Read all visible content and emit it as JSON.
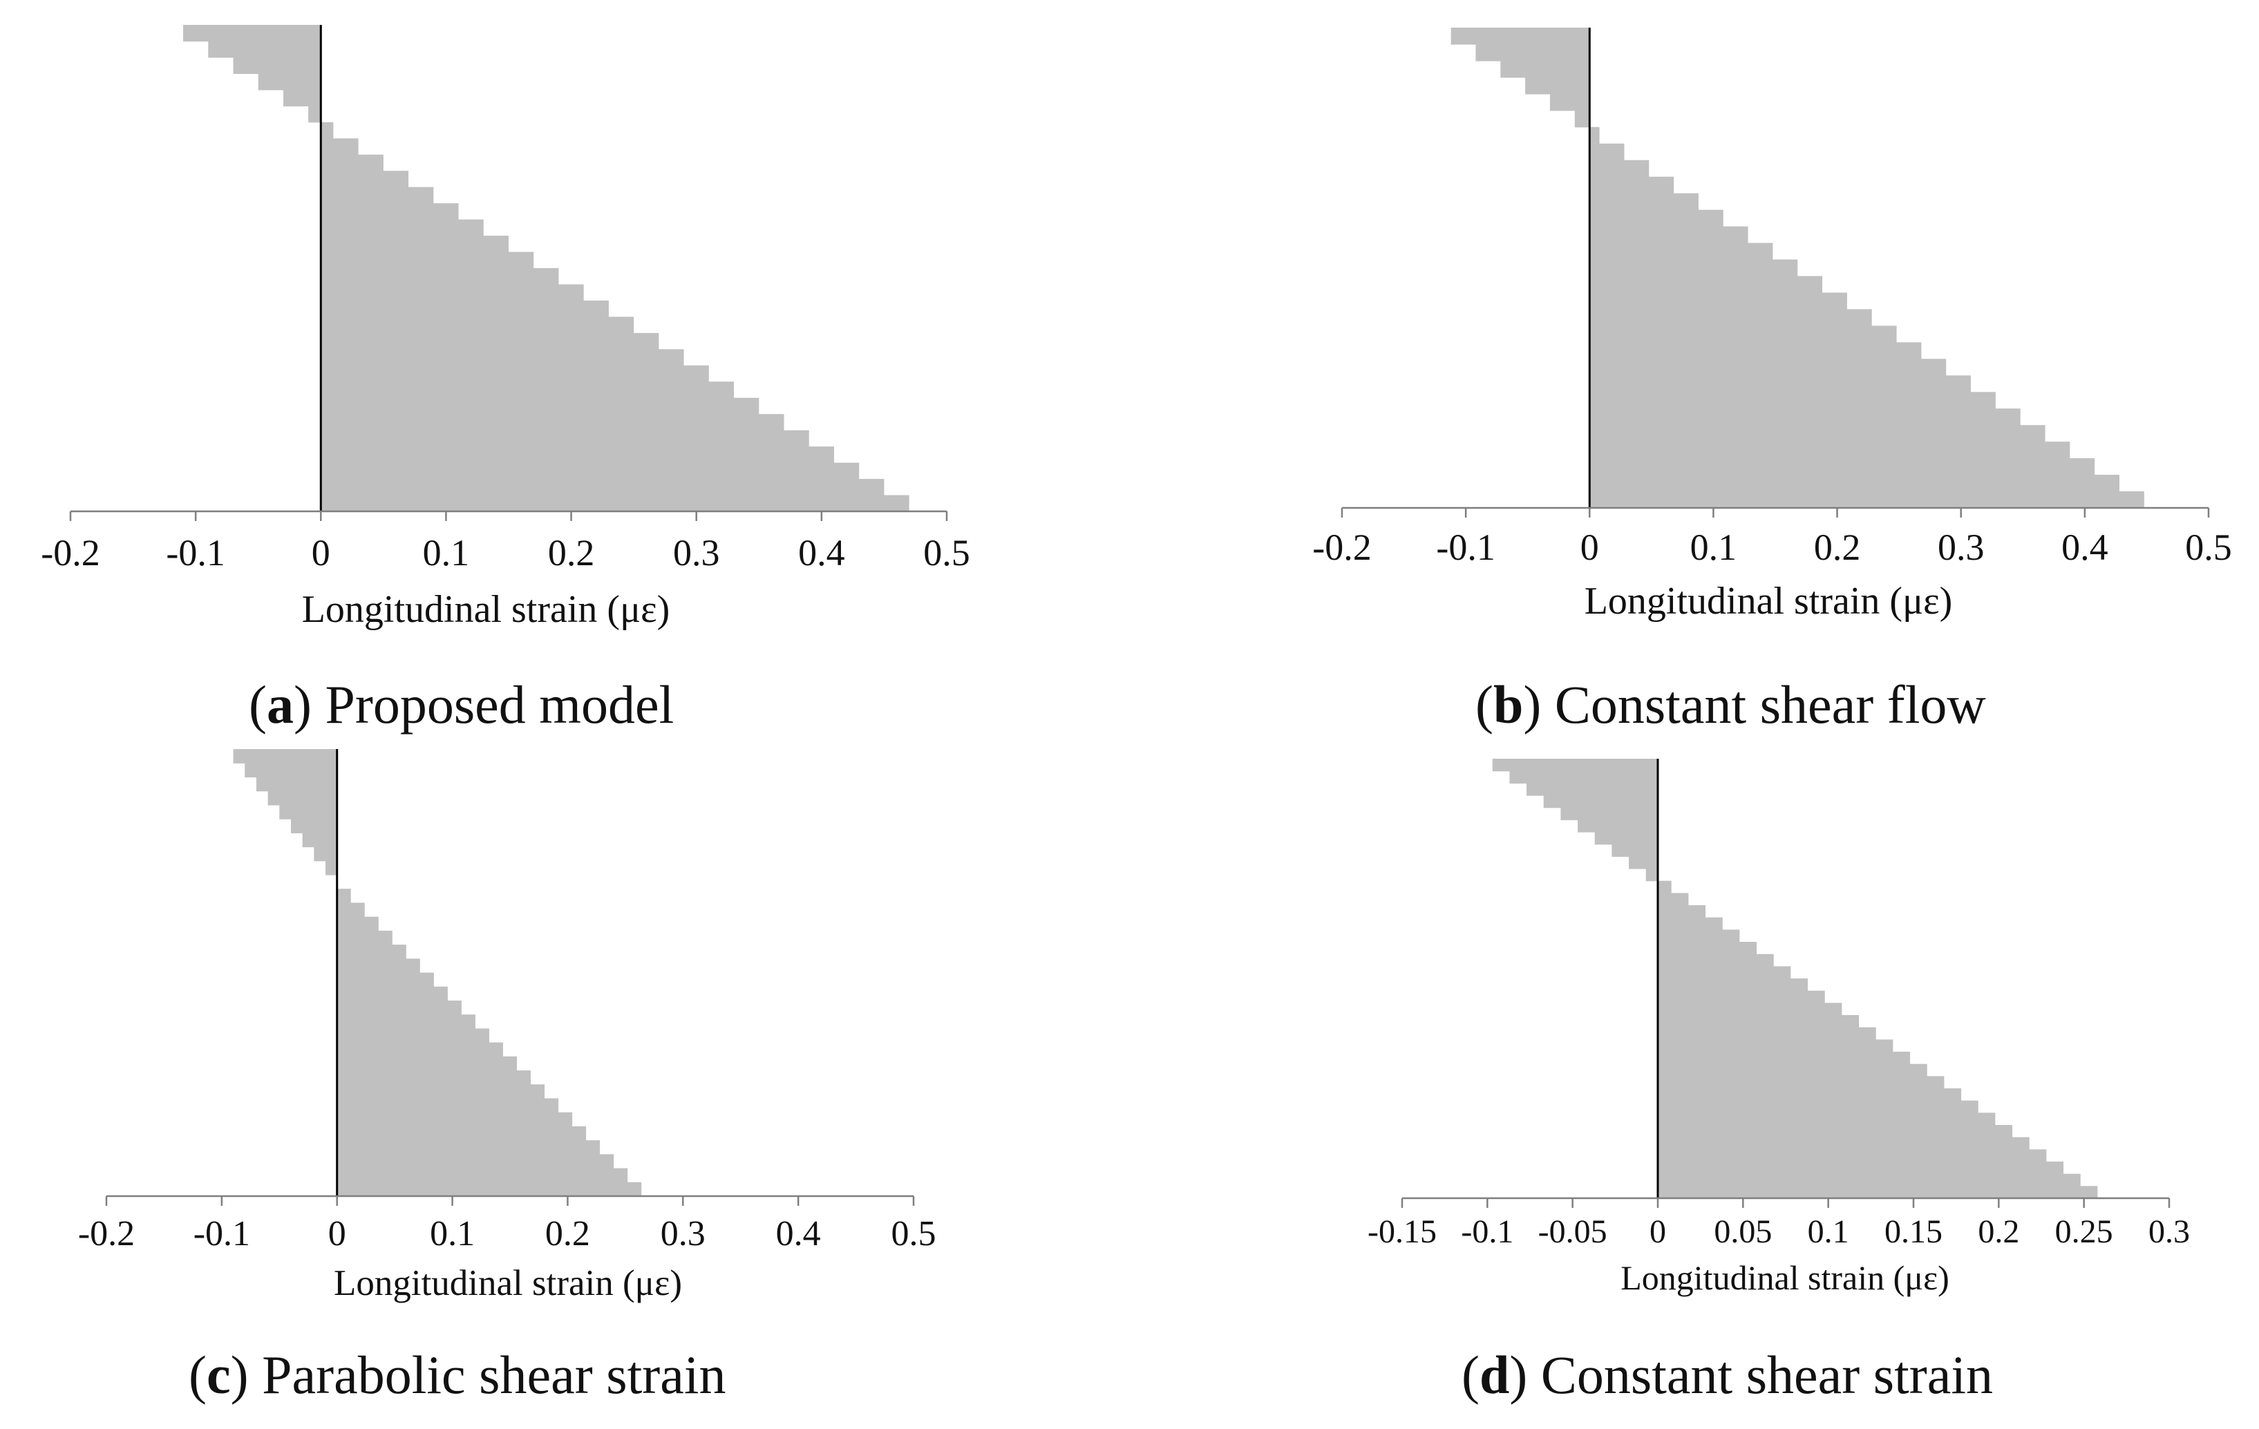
{
  "chart_data": [
    {
      "id": "a",
      "type": "bar",
      "orientation": "horizontal",
      "caption_letter": "a",
      "caption_text": "Proposed model",
      "xlabel": "Longitudinal strain (με)",
      "xlim": [
        -0.2,
        0.5
      ],
      "xticks": [
        "-0.2",
        "-0.1",
        "0",
        "0.1",
        "0.2",
        "0.3",
        "0.4",
        "0.5"
      ],
      "values": [
        -0.11,
        -0.09,
        -0.07,
        -0.05,
        -0.03,
        -0.01,
        0.01,
        0.03,
        0.05,
        0.07,
        0.09,
        0.11,
        0.13,
        0.15,
        0.17,
        0.19,
        0.21,
        0.23,
        0.25,
        0.27,
        0.29,
        0.31,
        0.33,
        0.35,
        0.37,
        0.39,
        0.41,
        0.43,
        0.45,
        0.47
      ],
      "fill": "#c0c0c0"
    },
    {
      "id": "b",
      "type": "bar",
      "orientation": "horizontal",
      "caption_letter": "b",
      "caption_text": "Constant shear flow",
      "xlabel": "Longitudinal strain (με)",
      "xlim": [
        -0.2,
        0.5
      ],
      "xticks": [
        "-0.2",
        "-0.1",
        "0",
        "0.1",
        "0.2",
        "0.3",
        "0.4",
        "0.5"
      ],
      "values": [
        -0.112,
        -0.092,
        -0.072,
        -0.052,
        -0.032,
        -0.012,
        0.008,
        0.028,
        0.048,
        0.068,
        0.088,
        0.108,
        0.128,
        0.148,
        0.168,
        0.188,
        0.208,
        0.228,
        0.248,
        0.268,
        0.288,
        0.308,
        0.328,
        0.348,
        0.368,
        0.388,
        0.408,
        0.428,
        0.448
      ],
      "fill": "#c0c0c0"
    },
    {
      "id": "c",
      "type": "bar",
      "orientation": "horizontal",
      "caption_letter": "c",
      "caption_text": "Parabolic shear strain",
      "xlabel": "Longitudinal strain (με)",
      "xlim": [
        -0.2,
        0.5
      ],
      "xticks": [
        "-0.2",
        "-0.1",
        "0",
        "0.1",
        "0.2",
        "0.3",
        "0.4",
        "0.5"
      ],
      "values": [
        -0.09,
        -0.08,
        -0.07,
        -0.06,
        -0.05,
        -0.04,
        -0.03,
        -0.02,
        -0.01,
        0.0,
        0.012,
        0.024,
        0.036,
        0.048,
        0.06,
        0.072,
        0.084,
        0.096,
        0.108,
        0.12,
        0.132,
        0.144,
        0.156,
        0.168,
        0.18,
        0.192,
        0.204,
        0.216,
        0.228,
        0.24,
        0.252,
        0.264
      ],
      "fill": "#c0c0c0"
    },
    {
      "id": "d",
      "type": "bar",
      "orientation": "horizontal",
      "caption_letter": "d",
      "caption_text": "Constant shear strain",
      "xlabel": "Longitudinal strain (με)",
      "xlim": [
        -0.15,
        0.3
      ],
      "xticks": [
        "-0.15",
        "-0.1",
        "-0.05",
        "0",
        "0.05",
        "0.1",
        "0.15",
        "0.2",
        "0.25",
        "0.3"
      ],
      "values": [
        -0.097,
        -0.087,
        -0.077,
        -0.067,
        -0.057,
        -0.047,
        -0.037,
        -0.027,
        -0.017,
        -0.007,
        0.008,
        0.018,
        0.028,
        0.038,
        0.048,
        0.058,
        0.068,
        0.078,
        0.088,
        0.098,
        0.108,
        0.118,
        0.128,
        0.138,
        0.148,
        0.158,
        0.168,
        0.178,
        0.188,
        0.198,
        0.208,
        0.218,
        0.228,
        0.238,
        0.248,
        0.258
      ],
      "fill": "#c0c0c0"
    }
  ]
}
